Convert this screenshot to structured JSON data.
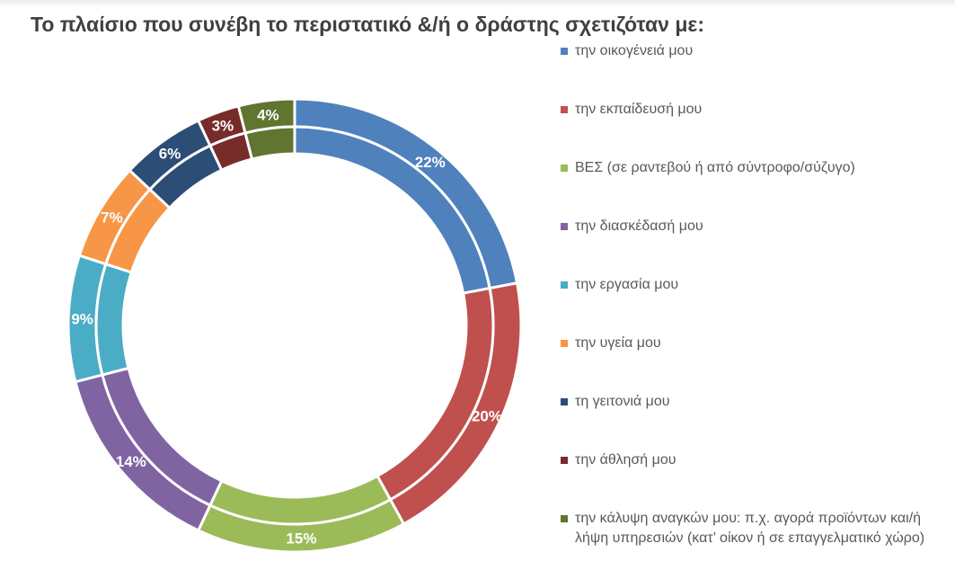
{
  "chart_data": {
    "type": "pie",
    "variant": "double-ring-donut",
    "title": "Το πλαίσιο που συνέβη το περιστατικό &/ή ο δράστης σχετιζόταν με:",
    "categories": [
      "την οικογένειά μου",
      "την εκπαίδευσή μου",
      "ΒΕΣ (σε ραντεβού ή από σύντροφο/σύζυγο)",
      "την διασκέδασή μου",
      "την εργασία μου",
      "την υγεία μου",
      "τη γειτονιά μου",
      "την άθλησή μου",
      "την κάλυψη αναγκών μου: π.χ. αγορά προϊόντων και/ή λήψη υπηρεσιών (κατ’ οίκον ή σε επαγγελματικό χώρο)"
    ],
    "values": [
      22,
      20,
      15,
      14,
      9,
      7,
      6,
      3,
      4
    ],
    "data_labels": [
      "22%",
      "20%",
      "15%",
      "14%",
      "9%",
      "7%",
      "6%",
      "3%",
      "4%"
    ],
    "colors": [
      "#4f81bd",
      "#c0504d",
      "#9bbb59",
      "#8064a2",
      "#4bacc6",
      "#f79646",
      "#2c4d75",
      "#772c2a",
      "#5f7530"
    ],
    "legend_position": "right"
  }
}
